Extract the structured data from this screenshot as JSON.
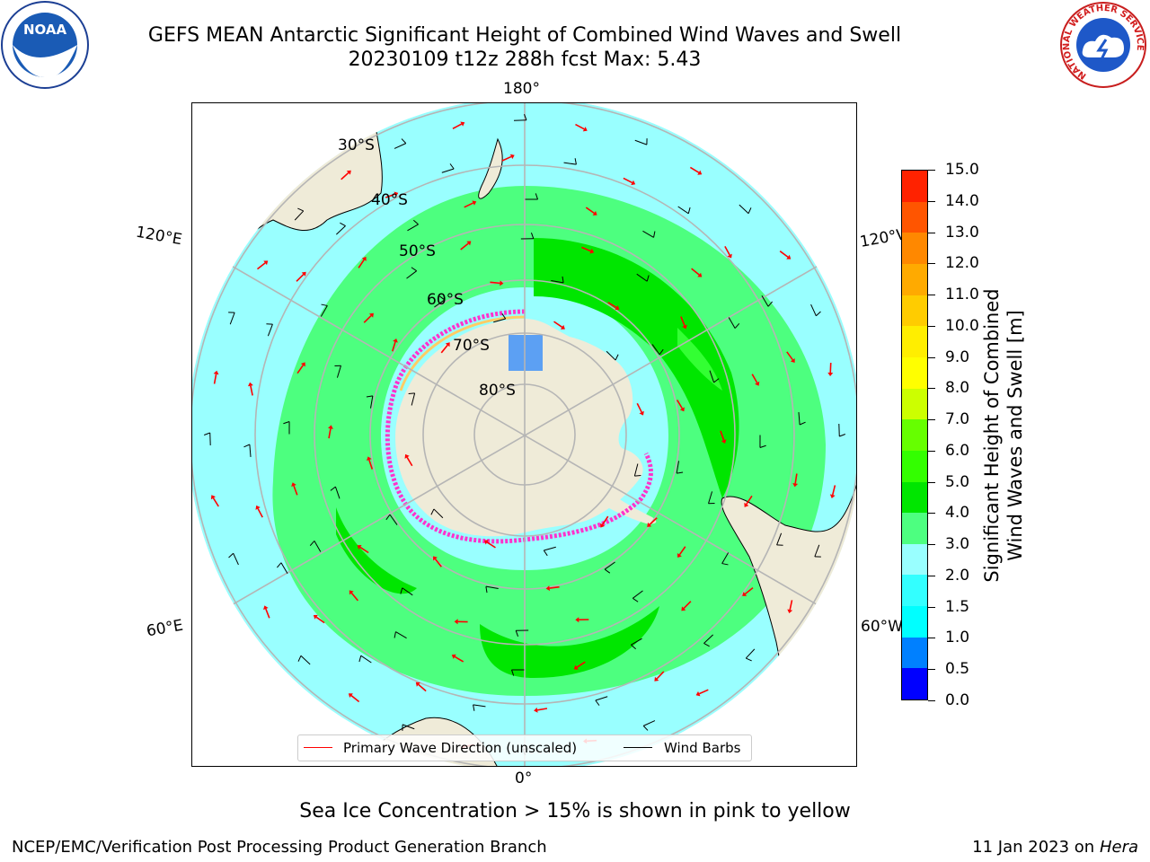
{
  "header": {
    "title_line1": "GEFS MEAN Antarctic Significant Height of Combined Wind Waves and Swell",
    "title_line2": "20230109 t12z 288h fcst   Max: 5.43"
  },
  "logos": {
    "noaa_text": "NOAA",
    "nws_ring_text": "NATIONAL WEATHER SERVICE"
  },
  "map": {
    "lon_labels": {
      "top": "180°",
      "bottom": "0°",
      "upper_left": "120°E",
      "upper_right": "120°W",
      "lower_left": "60°E",
      "lower_right": "60°W"
    },
    "lat_labels": [
      "30°S",
      "40°S",
      "50°S",
      "60°S",
      "70°S",
      "80°S"
    ],
    "legend": {
      "wave_dir": "Primary Wave Direction (unscaled)",
      "wind_barbs": "Wind Barbs"
    },
    "colors": {
      "land": "#efebd8",
      "ocean_1": "#00ffff",
      "ocean_2": "#99ffff",
      "wave_3": "#4dff7f",
      "wave_4": "#00e600",
      "wave_5": "#33ff33",
      "grid": "#b5b5b5",
      "arrow": "#ff0000",
      "seaice": "#ff33cc"
    }
  },
  "colorbar": {
    "label_line1": "Significant Height of Combined",
    "label_line2": "Wind Waves and Swell [m]",
    "ticks": [
      "0.0",
      "0.5",
      "1.0",
      "1.5",
      "2.0",
      "3.0",
      "4.0",
      "5.0",
      "6.0",
      "7.0",
      "8.0",
      "9.0",
      "10.0",
      "11.0",
      "12.0",
      "13.0",
      "14.0",
      "15.0"
    ],
    "colors": [
      "#0000ff",
      "#0080ff",
      "#00ffff",
      "#33ffff",
      "#99ffff",
      "#4dff80",
      "#00e600",
      "#33ff00",
      "#66ff00",
      "#ccff00",
      "#ffff00",
      "#ffee00",
      "#ffcc00",
      "#ffaa00",
      "#ff8800",
      "#ff5500",
      "#ff2200"
    ]
  },
  "footer": {
    "sea_ice_note": "Sea Ice Concentration > 15% is shown in pink to yellow",
    "left": "NCEP/EMC/Verification Post Processing Product Generation Branch",
    "right_date": "11 Jan 2023 on ",
    "right_machine": "Hera"
  }
}
